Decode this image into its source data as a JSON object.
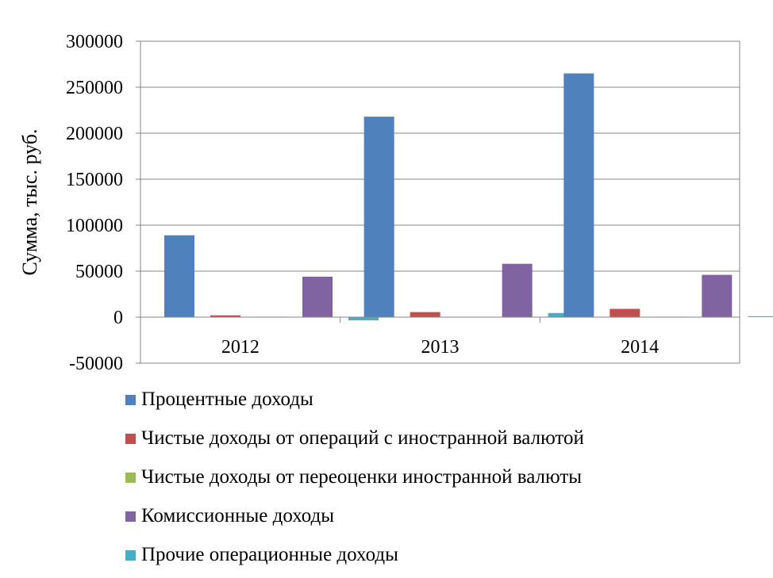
{
  "chart_data": {
    "type": "bar",
    "title": "",
    "ylabel": "Сумма, тыс. руб.",
    "xlabel": "",
    "categories": [
      "2012",
      "2013",
      "2014"
    ],
    "ylim": [
      -50000,
      300000
    ],
    "yticks": [
      300000,
      250000,
      200000,
      150000,
      100000,
      50000,
      0,
      -50000
    ],
    "yticks_text": [
      "300000",
      "250000",
      "200000",
      "150000",
      "100000",
      "50000",
      "0",
      "-50000"
    ],
    "grid": true,
    "legend_position": "bottom",
    "series": [
      {
        "name": "Процентные доходы",
        "color": "#4F81BD",
        "values": [
          89000,
          218000,
          265000
        ]
      },
      {
        "name": "Чистые доходы от операций с иностранной валютой",
        "color": "#C0504D",
        "values": [
          2000,
          5500,
          9000
        ]
      },
      {
        "name": "Чистые доходы от переоценки иностранной валюты",
        "color": "#9BBB59",
        "values": [
          500,
          0,
          500
        ]
      },
      {
        "name": "Комиссионные доходы",
        "color": "#8064A2",
        "values": [
          44000,
          58000,
          46000
        ]
      },
      {
        "name": "Прочие операционные доходы",
        "color": "#4BACC6",
        "values": [
          -3500,
          4500,
          1000
        ]
      }
    ]
  }
}
